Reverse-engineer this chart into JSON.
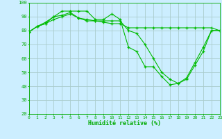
{
  "background_color": "#cceeff",
  "grid_color": "#aacccc",
  "line_color": "#00bb00",
  "xlabel": "Humidité relative (%)",
  "xlabel_color": "#00aa00",
  "tick_color": "#00aa00",
  "ylim": [
    20,
    100
  ],
  "xlim": [
    0,
    23
  ],
  "yticks": [
    20,
    30,
    40,
    50,
    60,
    70,
    80,
    90,
    100
  ],
  "xticks": [
    0,
    1,
    2,
    3,
    4,
    5,
    6,
    7,
    8,
    9,
    10,
    11,
    12,
    13,
    14,
    15,
    16,
    17,
    18,
    19,
    20,
    21,
    22,
    23
  ],
  "series": [
    {
      "x": [
        0,
        1,
        2,
        3,
        4,
        5,
        6,
        7,
        8,
        9,
        10,
        11,
        12,
        13,
        14,
        15,
        16,
        17,
        18,
        19,
        20,
        21,
        22,
        23
      ],
      "y": [
        79,
        83,
        86,
        90,
        94,
        94,
        94,
        94,
        88,
        88,
        92,
        88,
        68,
        65,
        54,
        54,
        47,
        41,
        42,
        46,
        57,
        68,
        80,
        80
      ]
    },
    {
      "x": [
        0,
        1,
        2,
        3,
        4,
        5,
        6,
        7,
        8,
        9,
        10,
        11,
        12,
        13,
        14,
        15,
        16,
        17,
        18,
        19,
        20,
        21,
        22,
        23
      ],
      "y": [
        79,
        83,
        85,
        90,
        91,
        93,
        89,
        87,
        87,
        87,
        87,
        87,
        80,
        78,
        70,
        60,
        50,
        45,
        42,
        45,
        55,
        65,
        80,
        80
      ]
    },
    {
      "x": [
        0,
        1,
        2,
        3,
        4,
        5,
        6,
        7,
        8,
        9,
        10,
        11,
        12,
        13,
        14,
        15,
        16,
        17,
        18,
        19,
        20,
        21,
        22,
        23
      ],
      "y": [
        79,
        83,
        85,
        88,
        90,
        92,
        89,
        88,
        87,
        86,
        85,
        85,
        82,
        82,
        82,
        82,
        82,
        82,
        82,
        82,
        82,
        82,
        82,
        80
      ]
    }
  ]
}
